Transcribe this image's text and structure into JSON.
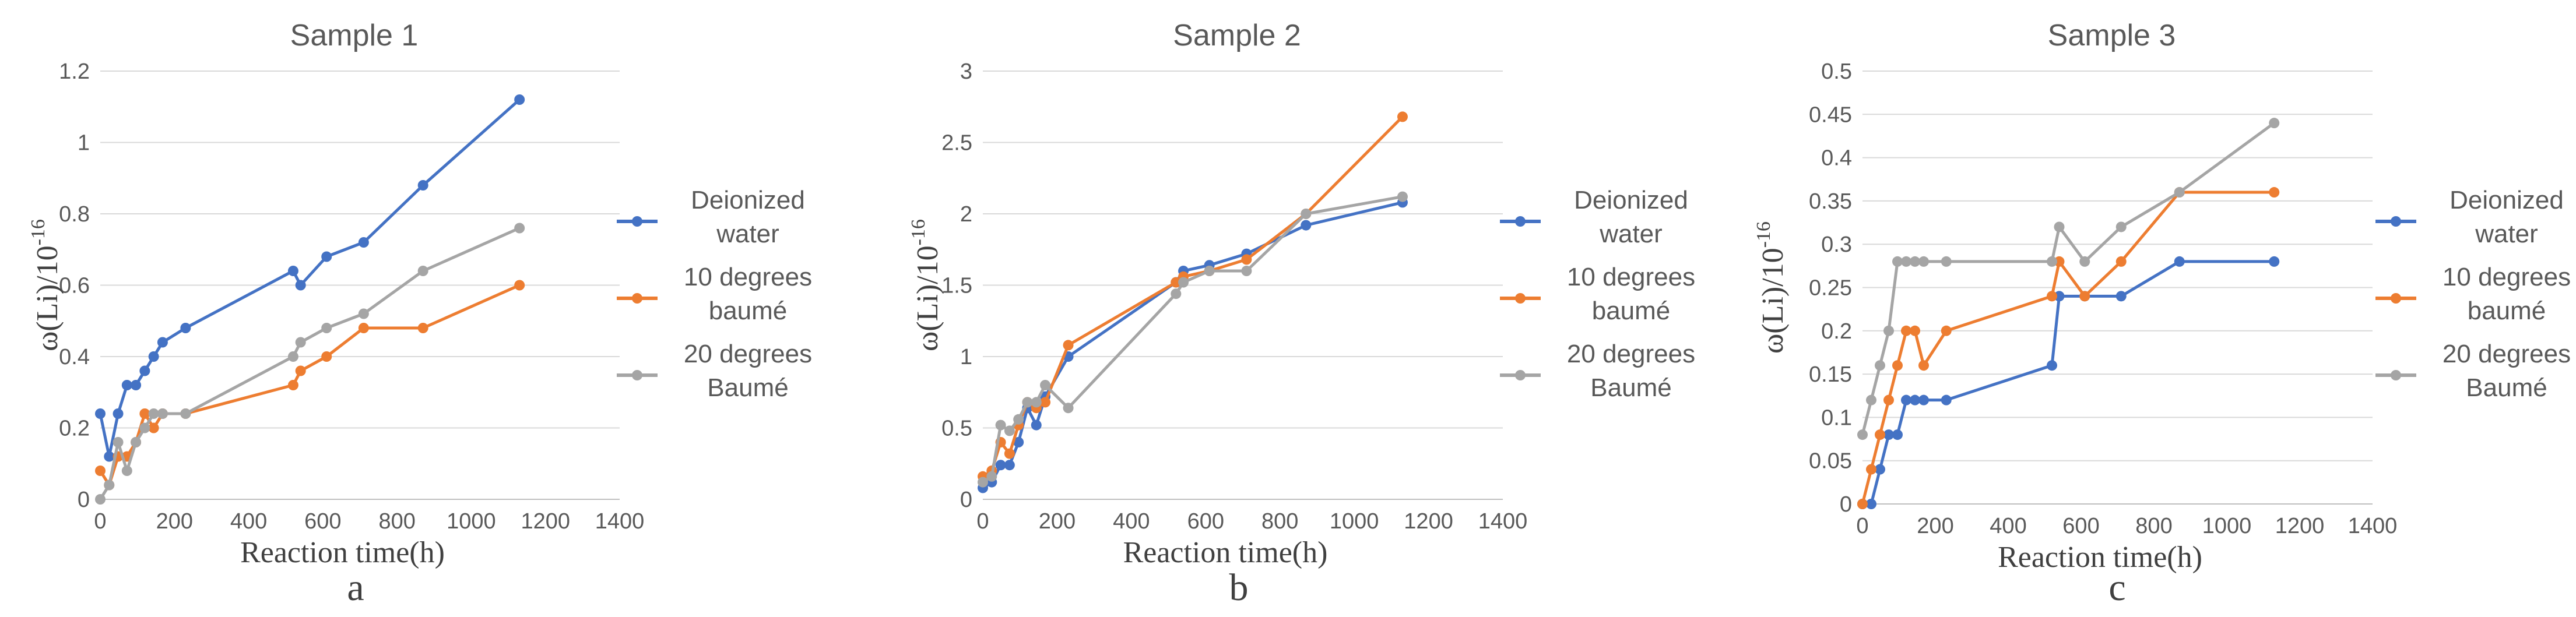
{
  "chart_data": [
    {
      "type": "line",
      "title": "Sample 1",
      "xlabel": "Reaction time(h)",
      "ylabel": "ω(Li)/10",
      "ylabel_exponent": "-16",
      "panel_label": "a",
      "xlim": [
        0,
        1400
      ],
      "ylim": [
        0,
        1.2
      ],
      "xticks": [
        "0",
        "200",
        "400",
        "600",
        "800",
        "1000",
        "1200",
        "1400"
      ],
      "yticks": [
        "0",
        "0.2",
        "0.4",
        "0.6",
        "0.8",
        "1",
        "1.2"
      ],
      "series": [
        {
          "name": "Deionized water",
          "name_lines": [
            "Deionized",
            "water"
          ],
          "color": "#4472c4",
          "x": [
            0,
            24,
            48,
            72,
            96,
            120,
            144,
            168,
            230,
            520,
            540,
            610,
            710,
            870,
            1130
          ],
          "y": [
            0.24,
            0.12,
            0.24,
            0.32,
            0.32,
            0.36,
            0.4,
            0.44,
            0.48,
            0.64,
            0.6,
            0.68,
            0.72,
            0.88,
            1.12
          ]
        },
        {
          "name": "10 degrees baumé",
          "name_lines": [
            "10 degrees",
            "baumé"
          ],
          "color": "#ed7d31",
          "x": [
            0,
            24,
            48,
            72,
            96,
            120,
            144,
            168,
            230,
            520,
            540,
            610,
            710,
            870,
            1130
          ],
          "y": [
            0.08,
            0.04,
            0.12,
            0.12,
            0.16,
            0.24,
            0.2,
            0.24,
            0.24,
            0.32,
            0.36,
            0.4,
            0.48,
            0.48,
            0.6
          ]
        },
        {
          "name": "20 degrees Baumé",
          "name_lines": [
            "20 degrees",
            "Baumé"
          ],
          "color": "#a5a5a5",
          "x": [
            0,
            24,
            48,
            72,
            96,
            120,
            144,
            168,
            230,
            520,
            540,
            610,
            710,
            870,
            1130
          ],
          "y": [
            0.0,
            0.04,
            0.16,
            0.08,
            0.16,
            0.2,
            0.24,
            0.24,
            0.24,
            0.4,
            0.44,
            0.48,
            0.52,
            0.64,
            0.76
          ]
        }
      ]
    },
    {
      "type": "line",
      "title": "Sample 2",
      "xlabel": "Reaction time(h)",
      "ylabel": "ω(Li)/10",
      "ylabel_exponent": "-16",
      "panel_label": "b",
      "xlim": [
        0,
        1400
      ],
      "ylim": [
        0,
        3
      ],
      "xticks": [
        "0",
        "200",
        "400",
        "600",
        "800",
        "1000",
        "1200",
        "1400"
      ],
      "yticks": [
        "0",
        "0.5",
        "1",
        "1.5",
        "2",
        "2.5",
        "3"
      ],
      "series": [
        {
          "name": "Deionized water",
          "name_lines": [
            "Deionized",
            "water"
          ],
          "color": "#4472c4",
          "x": [
            0,
            24,
            48,
            72,
            96,
            120,
            144,
            168,
            230,
            520,
            540,
            610,
            710,
            870,
            1130
          ],
          "y": [
            0.08,
            0.12,
            0.24,
            0.24,
            0.4,
            0.64,
            0.52,
            0.72,
            1.0,
            1.52,
            1.6,
            1.64,
            1.72,
            1.92,
            2.08
          ]
        },
        {
          "name": "10 degrees baumé",
          "name_lines": [
            "10 degrees",
            "baumé"
          ],
          "color": "#ed7d31",
          "x": [
            0,
            24,
            48,
            72,
            96,
            120,
            144,
            168,
            230,
            520,
            540,
            610,
            710,
            870,
            1130
          ],
          "y": [
            0.16,
            0.2,
            0.4,
            0.32,
            0.52,
            0.68,
            0.64,
            0.68,
            1.08,
            1.52,
            1.56,
            1.6,
            1.68,
            2.0,
            2.68
          ]
        },
        {
          "name": "20 degrees Baumé",
          "name_lines": [
            "20 degrees",
            "Baumé"
          ],
          "color": "#a5a5a5",
          "x": [
            0,
            24,
            48,
            72,
            96,
            120,
            144,
            168,
            230,
            520,
            540,
            610,
            710,
            870,
            1130
          ],
          "y": [
            0.12,
            0.16,
            0.52,
            0.48,
            0.56,
            0.68,
            0.68,
            0.8,
            0.64,
            1.44,
            1.52,
            1.6,
            1.6,
            2.0,
            2.12
          ]
        }
      ]
    },
    {
      "type": "line",
      "title": "Sample 3",
      "xlabel": "Reaction time(h)",
      "ylabel": "ω(Li)/10",
      "ylabel_exponent": "-16",
      "panel_label": "c",
      "xlim": [
        0,
        1400
      ],
      "ylim": [
        0,
        0.5
      ],
      "xticks": [
        "0",
        "200",
        "400",
        "600",
        "800",
        "1000",
        "1200",
        "1400"
      ],
      "yticks": [
        "0",
        "0.05",
        "0.1",
        "0.15",
        "0.2",
        "0.25",
        "0.3",
        "0.35",
        "0.4",
        "0.45",
        "0.5"
      ],
      "series": [
        {
          "name": "Deionized water",
          "name_lines": [
            "Deionized",
            "water"
          ],
          "color": "#4472c4",
          "x": [
            0,
            24,
            48,
            72,
            96,
            120,
            144,
            168,
            230,
            520,
            540,
            610,
            710,
            870,
            1130
          ],
          "y": [
            0.0,
            0.0,
            0.04,
            0.08,
            0.08,
            0.12,
            0.12,
            0.12,
            0.12,
            0.16,
            0.24,
            0.24,
            0.24,
            0.28,
            0.28
          ]
        },
        {
          "name": "10 degrees baumé",
          "name_lines": [
            "10 degrees",
            "baumé"
          ],
          "color": "#ed7d31",
          "x": [
            0,
            24,
            48,
            72,
            96,
            120,
            144,
            168,
            230,
            520,
            540,
            610,
            710,
            870,
            1130
          ],
          "y": [
            0.0,
            0.04,
            0.08,
            0.12,
            0.16,
            0.2,
            0.2,
            0.16,
            0.2,
            0.24,
            0.28,
            0.24,
            0.28,
            0.36,
            0.36
          ]
        },
        {
          "name": "20 degrees Baumé",
          "name_lines": [
            "20 degrees",
            "Baumé"
          ],
          "color": "#a5a5a5",
          "x": [
            0,
            24,
            48,
            72,
            96,
            120,
            144,
            168,
            230,
            520,
            540,
            610,
            710,
            870,
            1130
          ],
          "y": [
            0.08,
            0.12,
            0.16,
            0.2,
            0.28,
            0.28,
            0.28,
            0.28,
            0.28,
            0.28,
            0.32,
            0.28,
            0.32,
            0.36,
            0.44
          ]
        }
      ]
    }
  ]
}
